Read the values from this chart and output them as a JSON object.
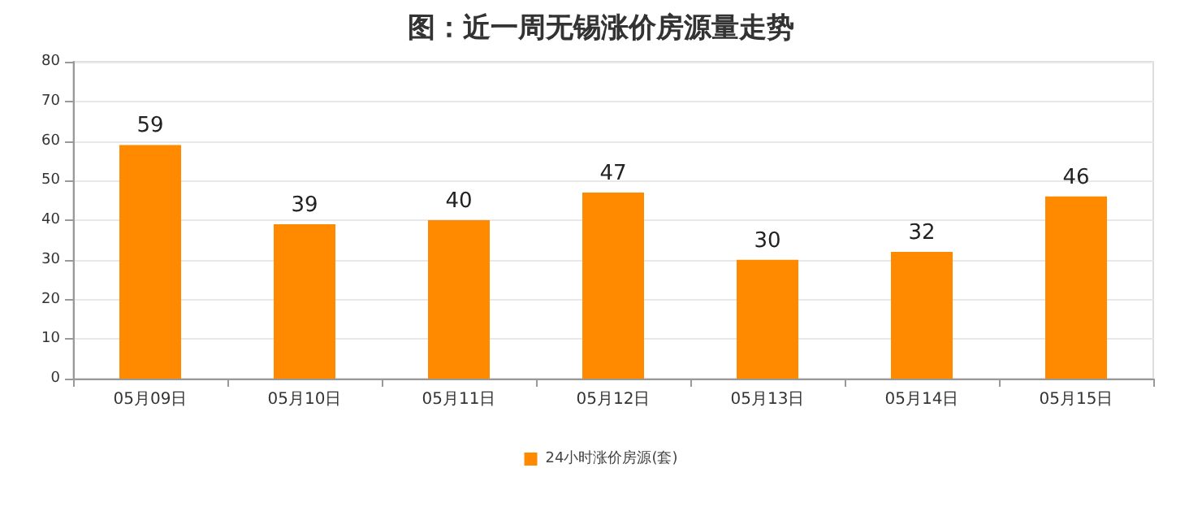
{
  "chart_data": {
    "type": "bar",
    "title": "图：近一周无锡涨价房源量走势",
    "categories": [
      "05月09日",
      "05月10日",
      "05月11日",
      "05月12日",
      "05月13日",
      "05月14日",
      "05月15日"
    ],
    "series": [
      {
        "name": "24小时涨价房源(套)",
        "color": "#ff8a00",
        "values": [
          59,
          39,
          40,
          47,
          30,
          32,
          46
        ]
      }
    ],
    "ylim": [
      0,
      80
    ],
    "yticks": [
      0,
      10,
      20,
      30,
      40,
      50,
      60,
      70,
      80
    ],
    "grid": "y",
    "legend": "bottom",
    "data_labels": true
  }
}
